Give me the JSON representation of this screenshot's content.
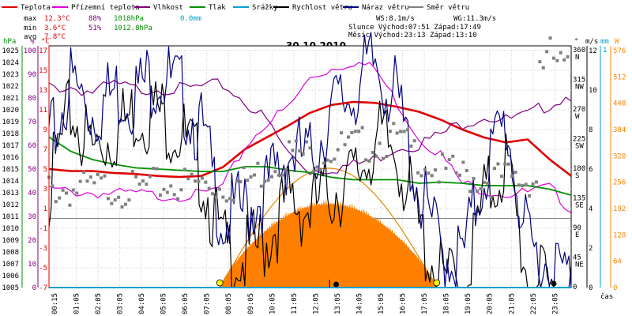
{
  "title": "30.10.2010",
  "legend": [
    {
      "name": "Teplota",
      "color": "#e00000"
    },
    {
      "name": "Přízemní teplota",
      "color": "#dd00dd"
    },
    {
      "name": "Vlhkost",
      "color": "#800080"
    },
    {
      "name": "Tlak",
      "color": "#009000"
    },
    {
      "name": "Srážky",
      "color": "#00a0d0"
    },
    {
      "name": "Rychlost větru",
      "color": "#000000"
    },
    {
      "name": "Náraz větru",
      "color": "#000080"
    },
    {
      "name": "Směr větru",
      "color": "#808080"
    }
  ],
  "stats": {
    "max": {
      "label": "max",
      "temp": "12.3°C",
      "hum": "88%",
      "press": "1018hPa",
      "rain": "0.0mm"
    },
    "min": {
      "label": "min",
      "temp": "3.6°C",
      "hum": "51%",
      "press": "1012.8hPa"
    },
    "avg": {
      "label": "avg",
      "temp": "7.8°C"
    },
    "ws": "WS:8.1m/s",
    "wg": "WG:11.3m/s",
    "slunce": "Slunce Východ:07:51  Západ:17:49",
    "mesic": "Měsíc  Východ:23:13  Západ:13:10"
  },
  "axes": {
    "left_units": [
      "hPa",
      "%",
      "°C"
    ],
    "right_units": [
      "°",
      "m/s",
      "mm",
      "W"
    ],
    "hpa_ticks": [
      "1025",
      "1024",
      "1023",
      "1022",
      "1021",
      "1020",
      "1019",
      "1018",
      "1017",
      "1016",
      "1015",
      "1014",
      "1013",
      "1012",
      "1011",
      "1010",
      "1009",
      "1008",
      "1007",
      "1006",
      "1005"
    ],
    "pct_ticks": [
      "100",
      "90",
      "80",
      "70",
      "60",
      "50",
      "40",
      "30",
      "20",
      "10",
      "0"
    ],
    "temp_ticks": [
      "17",
      "15",
      "13",
      "11",
      "9",
      "7",
      "5",
      "3",
      "1",
      "-1",
      "-3",
      "-5",
      "-7"
    ],
    "dir_ticks": [
      "360",
      "315",
      "270",
      "225",
      "180",
      "135",
      "90",
      "45",
      "0"
    ],
    "dir_labels": [
      "N",
      "NW",
      "W",
      "SW",
      "S",
      "SE",
      "E",
      "NE",
      ""
    ],
    "ms_ticks": [
      "12",
      "10",
      "8",
      "6",
      "4",
      "2",
      "0"
    ],
    "mm_ticks": [
      "1"
    ],
    "w_ticks": [
      "576",
      "512",
      "448",
      "384",
      "320",
      "256",
      "192",
      "128",
      "64",
      "0"
    ],
    "x_ticks": [
      "00:15",
      "01:05",
      "02:05",
      "03:05",
      "04:05",
      "05:05",
      "06:05",
      "07:05",
      "08:05",
      "09:05",
      "10:05",
      "11:05",
      "12:05",
      "13:05",
      "14:05",
      "15:05",
      "16:05",
      "17:05",
      "18:05",
      "19:05",
      "20:05",
      "21:05",
      "22:05",
      "23:05"
    ],
    "x_unit": "čas"
  },
  "chart_data": {
    "type": "line",
    "title": "30.10.2010",
    "x_hours": [
      0,
      1,
      2,
      3,
      4,
      5,
      6,
      7,
      8,
      9,
      10,
      11,
      12,
      13,
      14,
      15,
      16,
      17,
      18,
      19,
      20,
      21,
      22,
      23,
      24
    ],
    "series": [
      {
        "name": "Teplota",
        "unit": "°C",
        "color": "#e00000",
        "values": [
          5.0,
          4.8,
          4.8,
          4.6,
          4.5,
          4.3,
          4.2,
          4.3,
          5.2,
          7.0,
          8.2,
          9.4,
          10.7,
          11.5,
          11.8,
          11.7,
          11.3,
          10.8,
          10.0,
          9.0,
          8.2,
          7.7,
          8.0,
          6.0,
          4.3
        ]
      },
      {
        "name": "Přízemní teplota",
        "unit": "°C",
        "color": "#dd00dd",
        "values": [
          3.2,
          3.0,
          2.9,
          2.8,
          2.8,
          2.6,
          2.6,
          2.7,
          3.5,
          7.5,
          10.0,
          11.5,
          14.5,
          15.5,
          16.2,
          15.4,
          12.0,
          8.5,
          6.8,
          3.8,
          3.2,
          2.8,
          2.9,
          3.4,
          1.2
        ]
      },
      {
        "name": "Vlhkost",
        "unit": "%",
        "color": "#800080",
        "values": [
          86,
          86,
          84,
          87,
          85,
          86,
          85,
          86,
          87,
          80,
          72,
          58,
          51,
          52,
          53,
          56,
          61,
          62,
          66,
          71,
          74,
          72,
          74,
          79,
          83
        ]
      },
      {
        "name": "Tlak",
        "unit": "hPa",
        "color": "#009000",
        "values": [
          1017.7,
          1016.5,
          1015.8,
          1015.4,
          1015.1,
          1015.0,
          1014.9,
          1014.8,
          1014.8,
          1015.2,
          1015.2,
          1014.9,
          1014.7,
          1014.3,
          1014.1,
          1014.1,
          1014.1,
          1013.8,
          1013.9,
          1013.8,
          1013.6,
          1013.6,
          1013.6,
          1013.3,
          1012.8
        ]
      },
      {
        "name": "Rychlost větru",
        "unit": "m/s",
        "color": "#000000",
        "values": [
          6,
          10,
          8,
          9,
          10,
          10,
          9,
          7,
          3,
          2.5,
          3.5,
          5.5,
          5,
          6,
          6.5,
          8.5,
          8,
          4,
          1.5,
          1.0,
          5.5,
          7.5,
          1.5,
          0.8,
          0.8
        ]
      },
      {
        "name": "Náraz větru",
        "unit": "m/s",
        "color": "#000080",
        "values": [
          8,
          11.5,
          10,
          11,
          11,
          12,
          11,
          9,
          4.5,
          5,
          6,
          8,
          7.5,
          10,
          11,
          12.5,
          10.5,
          6,
          3,
          2.5,
          7,
          9.5,
          3,
          2.2,
          1.5
        ]
      },
      {
        "name": "Směr větru",
        "unit": "°",
        "color": "#808080",
        "values": [
          150,
          148,
          150,
          152,
          148,
          155,
          157,
          158,
          152,
          160,
          180,
          205,
          200,
          210,
          215,
          220,
          225,
          200,
          175,
          170,
          165,
          165,
          160,
          355,
          320
        ]
      },
      {
        "name": "Srážky",
        "unit": "mm",
        "color": "#00a0d0",
        "values": [
          0,
          0,
          0,
          0,
          0,
          0,
          0,
          0,
          0,
          0,
          0,
          0,
          0,
          0,
          0,
          0,
          0,
          0,
          0,
          0,
          0,
          0,
          0,
          0,
          0
        ]
      }
    ],
    "solar": {
      "unit": "W",
      "color": "#ff8000",
      "sunrise_h": 7.85,
      "sunset_h": 17.82,
      "max_measured": 216,
      "max_theoretical": 290
    },
    "ylim_temp": [
      -7,
      17
    ],
    "ylim_hpa": [
      1005,
      1025
    ],
    "ylim_pct": [
      0,
      100
    ],
    "ylim_dir": [
      0,
      360
    ],
    "ylim_ms": [
      0,
      12
    ],
    "ylim_w": [
      0,
      576
    ],
    "grid": true
  }
}
